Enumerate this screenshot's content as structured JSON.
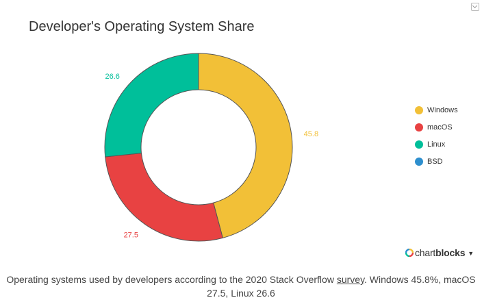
{
  "header": {
    "title": "Developer's Operating System Share"
  },
  "chart_data": {
    "type": "pie",
    "donut": true,
    "title": "Developer's Operating System Share",
    "slices": [
      {
        "label": "Windows",
        "value": 45.8,
        "color": "#f2c037"
      },
      {
        "label": "macOS",
        "value": 27.5,
        "color": "#e84242"
      },
      {
        "label": "Linux",
        "value": 26.6,
        "color": "#00bf9a"
      },
      {
        "label": "BSD",
        "value": 0,
        "color": "#2e8fce"
      }
    ],
    "legend_position": "right"
  },
  "brand": {
    "prefix": "chart",
    "suffix": "blocks",
    "caret": "▼"
  },
  "caption": {
    "before": "Operating systems used by developers according to the 2020 Stack Overflow ",
    "link": "survey",
    "after": ". Windows 45.8%, macOS 27.5, Linux 26.6"
  }
}
